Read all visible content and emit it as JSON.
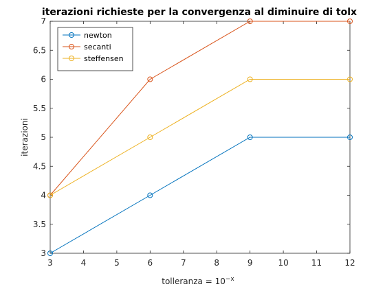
{
  "chart_data": {
    "type": "line",
    "title": "iterazioni richieste per la convergenza al diminuire di tolx",
    "xlabel": "tolleranza = 10",
    "xlabel_superscript": "−x",
    "ylabel": "iterazioni",
    "xlim": [
      3,
      12
    ],
    "ylim": [
      3,
      7
    ],
    "xticks": [
      3,
      4,
      5,
      6,
      7,
      8,
      9,
      10,
      11,
      12
    ],
    "yticks": [
      3,
      3.5,
      4,
      4.5,
      5,
      5.5,
      6,
      6.5,
      7
    ],
    "x": [
      3,
      6,
      9,
      12
    ],
    "grid": false,
    "legend_position": "top-left",
    "marker": "circle",
    "series": [
      {
        "name": "newton",
        "color": "#0072BD",
        "values": [
          3,
          4,
          5,
          5
        ]
      },
      {
        "name": "secanti",
        "color": "#D95319",
        "values": [
          4,
          6,
          7,
          7
        ]
      },
      {
        "name": "steffensen",
        "color": "#EDB120",
        "values": [
          4,
          5,
          6,
          6
        ]
      }
    ]
  }
}
